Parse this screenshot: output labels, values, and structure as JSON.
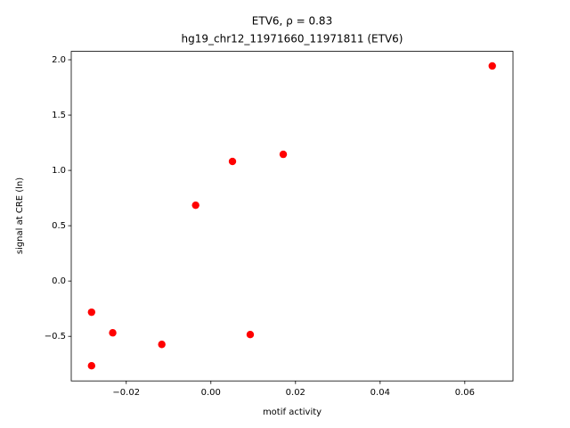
{
  "chart_data": {
    "type": "scatter",
    "title": "ETV6, ρ = 0.83",
    "subtitle": "hg19_chr12_11971660_11971811 (ETV6)",
    "x_label": "motif activity",
    "y_label": "signal at CRE (ln)",
    "color": "#ff0000",
    "x": [
      0.0665,
      0.0171,
      0.0051,
      -0.0036,
      -0.0282,
      -0.0232,
      -0.0116,
      0.0093,
      -0.0282
    ],
    "values": [
      1.944,
      1.145,
      1.081,
      0.685,
      -0.282,
      -0.468,
      -0.573,
      -0.484,
      -0.766
    ],
    "xlim": [
      -0.033,
      0.0714
    ],
    "ylim": [
      -0.903,
      2.076
    ],
    "xticks": [
      {
        "value": -0.02,
        "label": "−0.02"
      },
      {
        "value": 0,
        "label": "0.00"
      },
      0.02,
      0.04,
      0.06
    ],
    "yticks": [
      {
        "value": -0.5,
        "label": "−0.5"
      },
      {
        "value": 0,
        "label": "0.0"
      },
      0.5,
      {
        "value": 1,
        "label": "1.0"
      },
      1.5,
      {
        "value": 2,
        "label": "2.0"
      }
    ]
  }
}
